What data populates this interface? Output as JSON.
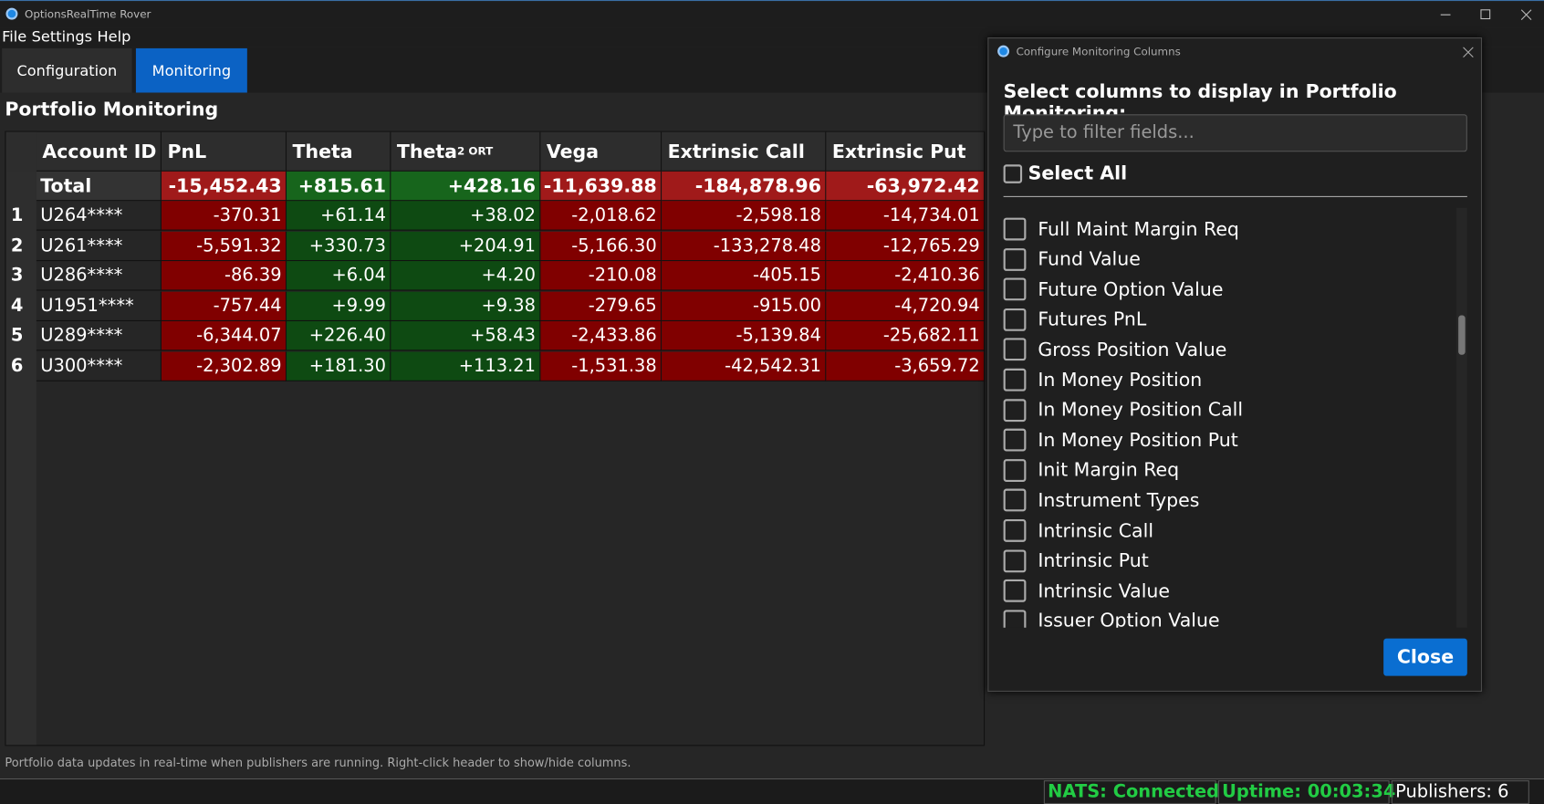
{
  "window": {
    "title": "OptionsRealTime Rover"
  },
  "menu": [
    "File",
    "Settings",
    "Help"
  ],
  "tabs": [
    "Configuration",
    "Monitoring"
  ],
  "section_title": "Portfolio Monitoring",
  "table": {
    "headers": [
      {
        "text": "Account ID"
      },
      {
        "text": "PnL"
      },
      {
        "text": "Theta"
      },
      {
        "text": "Theta",
        "sub": "2 ORT"
      },
      {
        "text": "Vega"
      },
      {
        "text": "Extrinsic Call"
      },
      {
        "text": "Extrinsic Put"
      }
    ],
    "total": [
      "Total",
      "-15,452.43",
      "+815.61",
      "+428.16",
      "-11,639.88",
      "-184,878.96",
      "-63,972.42"
    ],
    "rows": [
      {
        "num": "1",
        "cells": [
          "U264****",
          "-370.31",
          "+61.14",
          "+38.02",
          "-2,018.62",
          "-2,598.18",
          "-14,734.01"
        ]
      },
      {
        "num": "2",
        "cells": [
          "U261****",
          "-5,591.32",
          "+330.73",
          "+204.91",
          "-5,166.30",
          "-133,278.48",
          "-12,765.29"
        ]
      },
      {
        "num": "3",
        "cells": [
          "U286****",
          "-86.39",
          "+6.04",
          "+4.20",
          "-210.08",
          "-405.15",
          "-2,410.36"
        ]
      },
      {
        "num": "4",
        "cells": [
          "U1951****",
          "-757.44",
          "+9.99",
          "+9.38",
          "-279.65",
          "-915.00",
          "-4,720.94"
        ]
      },
      {
        "num": "5",
        "cells": [
          "U289****",
          "-6,344.07",
          "+226.40",
          "+58.43",
          "-2,433.86",
          "-5,139.84",
          "-25,682.11"
        ]
      },
      {
        "num": "6",
        "cells": [
          "U300****",
          "-2,302.89",
          "+181.30",
          "+113.21",
          "-1,531.38",
          "-42,542.31",
          "-3,659.72"
        ]
      }
    ]
  },
  "footer_note": "Portfolio data updates in real-time when publishers are running. Right-click header to show/hide columns.",
  "status": [
    "NATS: Connected",
    "Uptime: 00:03:34",
    "Publishers: 6"
  ],
  "dialog": {
    "title": "Configure Monitoring Columns",
    "prompt": "Select columns to display in Portfolio Monitoring:",
    "filter_placeholder": "Type to filter fields...",
    "select_all": "Select All",
    "fields": [
      "Full Maint Margin Req",
      "Fund Value",
      "Future Option Value",
      "Futures PnL",
      "Gross Position Value",
      "In Money Position",
      "In Money Position Call",
      "In Money Position Put",
      "Init Margin Req",
      "Instrument Types",
      "Intrinsic Call",
      "Intrinsic Put",
      "Intrinsic Value",
      "Issuer Option Value"
    ],
    "close": "Close"
  }
}
